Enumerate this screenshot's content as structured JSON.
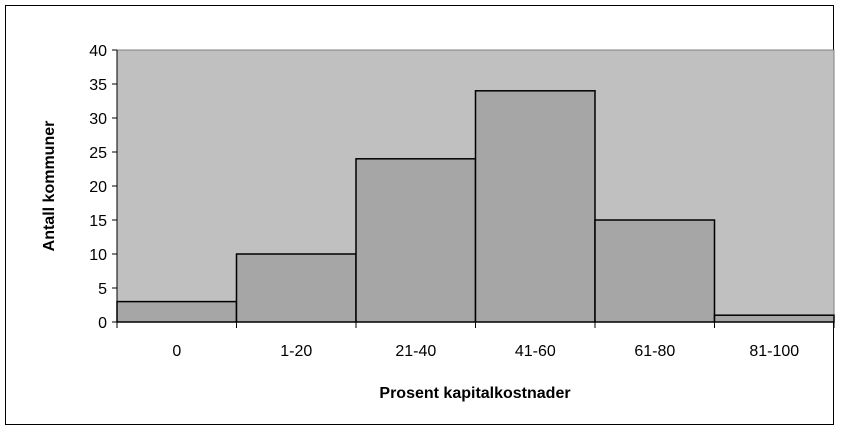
{
  "chart_data": {
    "type": "bar",
    "title": "",
    "xlabel": "Prosent kapitalkostnader",
    "ylabel": "Antall kommuner",
    "categories": [
      "0",
      "1-20",
      "21-40",
      "41-60",
      "61-80",
      "81-100"
    ],
    "values": [
      3,
      10,
      24,
      34,
      15,
      1
    ],
    "ylim": [
      0,
      40
    ],
    "yticks": [
      "0",
      "5",
      "10",
      "15",
      "20",
      "25",
      "30",
      "35",
      "40"
    ],
    "grid": false,
    "legend": "none",
    "colors": {
      "plot_background": "#c0c0c0",
      "bar_fill": "#a6a6a6",
      "bar_stroke": "#000000"
    }
  }
}
